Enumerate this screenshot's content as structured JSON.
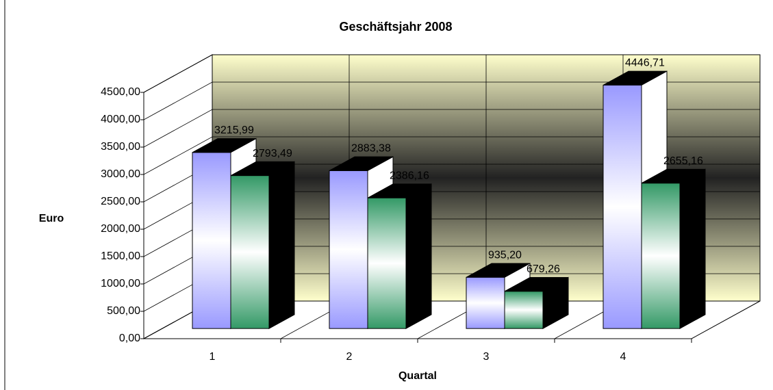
{
  "chart_data": {
    "type": "bar3d",
    "title": "Geschäftsjahr 2008",
    "x_label": "Quartal",
    "y_label": "Euro",
    "categories": [
      "1",
      "2",
      "3",
      "4"
    ],
    "series": [
      {
        "color": "#9999ff",
        "values": [
          3215.99,
          2883.38,
          935.2,
          4446.71
        ],
        "value_labels": [
          "3215,99",
          "2883,38",
          "935,20",
          "4446,71"
        ]
      },
      {
        "color": "#339966",
        "values": [
          2793.49,
          2386.16,
          679.26,
          2655.16
        ],
        "value_labels": [
          "2793,49",
          "2386,16",
          "679,26",
          "2655,16"
        ]
      }
    ],
    "ylim": [
      0,
      4500
    ],
    "yticks": [
      {
        "value": 0,
        "label": "0,00"
      },
      {
        "value": 500,
        "label": "500,00"
      },
      {
        "value": 1000,
        "label": "1000,00"
      },
      {
        "value": 1500,
        "label": "1500,00"
      },
      {
        "value": 2000,
        "label": "2000,00"
      },
      {
        "value": 2500,
        "label": "2500,00"
      },
      {
        "value": 3000,
        "label": "3000,00"
      },
      {
        "value": 3500,
        "label": "3500,00"
      },
      {
        "value": 4000,
        "label": "4000,00"
      },
      {
        "value": 4500,
        "label": "4500,00"
      }
    ],
    "grid": true
  }
}
